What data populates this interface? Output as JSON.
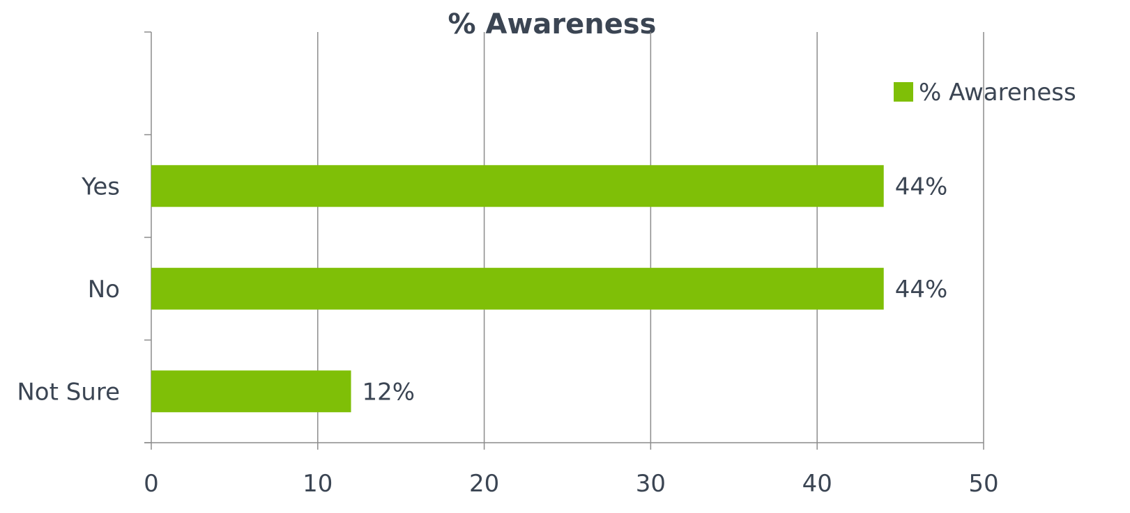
{
  "chart_data": {
    "type": "bar",
    "orientation": "horizontal",
    "title": "% Awareness",
    "categories": [
      "Yes",
      "No",
      "Not Sure"
    ],
    "series": [
      {
        "name": "% Awareness",
        "values": [
          44,
          44,
          12
        ],
        "data_labels": [
          "44%",
          "44%",
          "12%"
        ],
        "color": "#7fbf07"
      }
    ],
    "xlim": [
      0,
      50
    ],
    "x_ticks": [
      0,
      10,
      20,
      30,
      40,
      50
    ],
    "grid": true,
    "legend": "right",
    "xlabel": "",
    "ylabel": ""
  }
}
